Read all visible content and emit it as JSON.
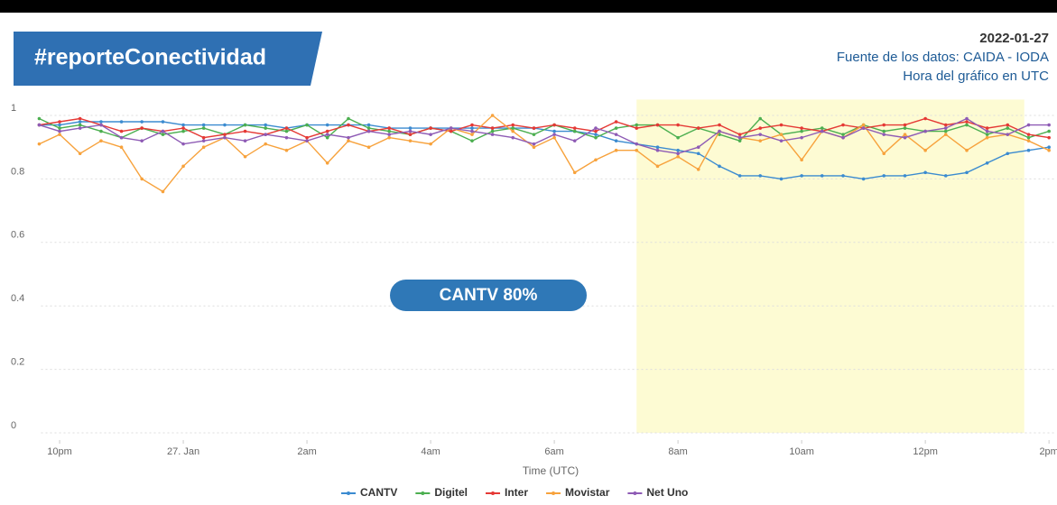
{
  "chart_data": {
    "type": "line",
    "title": "#reporteConectividad",
    "date": "2022-01-27",
    "subtitle": [
      "Fuente de los datos: CAIDA - IODA",
      "Hora del gráfico en UTC"
    ],
    "annotation": "CANTV 80%",
    "x_label": "Time (UTC)",
    "plot_band": [
      7.33,
      13.6
    ],
    "band_color": "#fdfbd3",
    "xlim": [
      -2.3,
      14.1
    ],
    "xticks": [
      {
        "value": -2,
        "label": "10pm"
      },
      {
        "value": 0,
        "label": "27. Jan"
      },
      {
        "value": 2,
        "label": "2am"
      },
      {
        "value": 4,
        "label": "4am"
      },
      {
        "value": 6,
        "label": "6am"
      },
      {
        "value": 8,
        "label": "8am"
      },
      {
        "value": 10,
        "label": "10am"
      },
      {
        "value": 12,
        "label": "12pm"
      },
      {
        "value": 14,
        "label": "2pm"
      }
    ],
    "ylim": [
      0,
      1.05
    ],
    "yticks": [
      0,
      0.2,
      0.4,
      0.6,
      0.8,
      1
    ],
    "grid": true,
    "x": [
      -2.33,
      -2,
      -1.67,
      -1.33,
      -1,
      -0.67,
      -0.33,
      0,
      0.33,
      0.67,
      1,
      1.33,
      1.67,
      2,
      2.33,
      2.67,
      3,
      3.33,
      3.67,
      4,
      4.33,
      4.67,
      5,
      5.33,
      5.67,
      6,
      6.33,
      6.67,
      7,
      7.33,
      7.67,
      8,
      8.33,
      8.67,
      9,
      9.33,
      9.67,
      10,
      10.33,
      10.67,
      11,
      11.33,
      11.67,
      12,
      12.33,
      12.67,
      13,
      13.33,
      13.67,
      14
    ],
    "series": [
      {
        "name": "CANTV",
        "color": "#3b8bd0",
        "values": [
          0.97,
          0.97,
          0.98,
          0.98,
          0.98,
          0.98,
          0.98,
          0.97,
          0.97,
          0.97,
          0.97,
          0.97,
          0.96,
          0.97,
          0.97,
          0.97,
          0.97,
          0.96,
          0.96,
          0.96,
          0.96,
          0.96,
          0.96,
          0.96,
          0.96,
          0.95,
          0.95,
          0.94,
          0.92,
          0.91,
          0.9,
          0.89,
          0.88,
          0.84,
          0.81,
          0.81,
          0.8,
          0.81,
          0.81,
          0.81,
          0.8,
          0.81,
          0.81,
          0.82,
          0.81,
          0.82,
          0.85,
          0.88,
          0.89,
          0.9
        ]
      },
      {
        "name": "Digitel",
        "color": "#4caf50",
        "values": [
          0.99,
          0.96,
          0.97,
          0.95,
          0.93,
          0.96,
          0.94,
          0.95,
          0.96,
          0.94,
          0.97,
          0.96,
          0.95,
          0.97,
          0.93,
          0.99,
          0.96,
          0.95,
          0.94,
          0.96,
          0.95,
          0.92,
          0.95,
          0.96,
          0.94,
          0.97,
          0.95,
          0.93,
          0.96,
          0.97,
          0.97,
          0.93,
          0.96,
          0.94,
          0.92,
          0.99,
          0.94,
          0.95,
          0.96,
          0.94,
          0.97,
          0.95,
          0.96,
          0.95,
          0.95,
          0.97,
          0.94,
          0.96,
          0.93,
          0.95
        ]
      },
      {
        "name": "Inter",
        "color": "#e53935",
        "values": [
          0.97,
          0.98,
          0.99,
          0.97,
          0.95,
          0.96,
          0.95,
          0.96,
          0.93,
          0.94,
          0.95,
          0.94,
          0.96,
          0.93,
          0.95,
          0.97,
          0.95,
          0.96,
          0.94,
          0.96,
          0.95,
          0.97,
          0.96,
          0.97,
          0.96,
          0.97,
          0.96,
          0.95,
          0.98,
          0.96,
          0.97,
          0.97,
          0.96,
          0.97,
          0.94,
          0.96,
          0.97,
          0.96,
          0.95,
          0.97,
          0.96,
          0.97,
          0.97,
          0.99,
          0.97,
          0.98,
          0.96,
          0.97,
          0.94,
          0.93
        ]
      },
      {
        "name": "Movistar",
        "color": "#f7a23c",
        "values": [
          0.91,
          0.94,
          0.88,
          0.92,
          0.9,
          0.8,
          0.76,
          0.84,
          0.9,
          0.93,
          0.87,
          0.91,
          0.89,
          0.92,
          0.85,
          0.92,
          0.9,
          0.93,
          0.92,
          0.91,
          0.96,
          0.94,
          1.0,
          0.95,
          0.9,
          0.93,
          0.82,
          0.86,
          0.89,
          0.89,
          0.84,
          0.87,
          0.83,
          0.95,
          0.93,
          0.92,
          0.94,
          0.86,
          0.95,
          0.93,
          0.97,
          0.88,
          0.94,
          0.89,
          0.94,
          0.89,
          0.93,
          0.94,
          0.92,
          0.89
        ]
      },
      {
        "name": "Net Uno",
        "color": "#8e5bb5",
        "values": [
          0.97,
          0.95,
          0.96,
          0.97,
          0.93,
          0.92,
          0.95,
          0.91,
          0.92,
          0.93,
          0.92,
          0.94,
          0.93,
          0.92,
          0.94,
          0.93,
          0.95,
          0.94,
          0.95,
          0.94,
          0.96,
          0.95,
          0.94,
          0.93,
          0.91,
          0.94,
          0.92,
          0.96,
          0.94,
          0.91,
          0.89,
          0.88,
          0.9,
          0.95,
          0.93,
          0.94,
          0.92,
          0.93,
          0.95,
          0.93,
          0.96,
          0.94,
          0.93,
          0.95,
          0.96,
          0.99,
          0.95,
          0.94,
          0.97,
          0.97
        ]
      }
    ]
  }
}
